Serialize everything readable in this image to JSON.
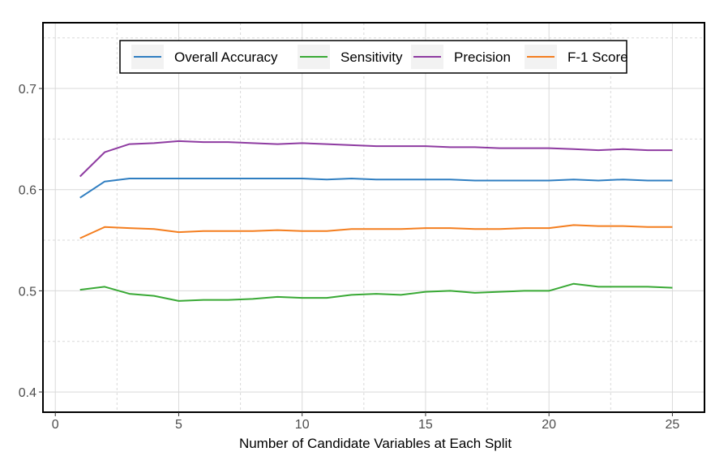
{
  "chart_data": {
    "type": "line",
    "title": "",
    "xlabel": "Number of Candidate Variables at Each Split",
    "ylabel": "",
    "xlim": [
      -0.5,
      26.3
    ],
    "ylim": [
      0.38,
      0.765
    ],
    "x_ticks": [
      0,
      5,
      10,
      15,
      20,
      25
    ],
    "y_ticks": [
      0.4,
      0.5,
      0.6,
      0.7
    ],
    "x_tick_labels": [
      "0",
      "5",
      "10",
      "15",
      "20",
      "25"
    ],
    "y_tick_labels": [
      "0.4",
      "0.5",
      "0.6",
      "0.7"
    ],
    "grid": true,
    "legend_position": "top",
    "x": [
      1,
      2,
      3,
      4,
      5,
      6,
      7,
      8,
      9,
      10,
      11,
      12,
      13,
      14,
      15,
      16,
      17,
      18,
      19,
      20,
      21,
      22,
      23,
      24,
      25
    ],
    "series": [
      {
        "name": "Overall Accuracy",
        "color": "#2f7ec1",
        "values": [
          0.592,
          0.608,
          0.611,
          0.611,
          0.611,
          0.611,
          0.611,
          0.611,
          0.611,
          0.611,
          0.61,
          0.611,
          0.61,
          0.61,
          0.61,
          0.61,
          0.609,
          0.609,
          0.609,
          0.609,
          0.61,
          0.609,
          0.61,
          0.609,
          0.609
        ]
      },
      {
        "name": "Sensitivity",
        "color": "#39a935",
        "values": [
          0.501,
          0.504,
          0.497,
          0.495,
          0.49,
          0.491,
          0.491,
          0.492,
          0.494,
          0.493,
          0.493,
          0.496,
          0.497,
          0.496,
          0.499,
          0.5,
          0.498,
          0.499,
          0.5,
          0.5,
          0.507,
          0.504,
          0.504,
          0.504,
          0.503
        ]
      },
      {
        "name": "Precision",
        "color": "#8e3ba1",
        "values": [
          0.613,
          0.637,
          0.645,
          0.646,
          0.648,
          0.647,
          0.647,
          0.646,
          0.645,
          0.646,
          0.645,
          0.644,
          0.643,
          0.643,
          0.643,
          0.642,
          0.642,
          0.641,
          0.641,
          0.641,
          0.64,
          0.639,
          0.64,
          0.639,
          0.639
        ]
      },
      {
        "name": "F-1 Score",
        "color": "#f47e1f",
        "values": [
          0.552,
          0.563,
          0.562,
          0.561,
          0.558,
          0.559,
          0.559,
          0.559,
          0.56,
          0.559,
          0.559,
          0.561,
          0.561,
          0.561,
          0.562,
          0.562,
          0.561,
          0.561,
          0.562,
          0.562,
          0.565,
          0.564,
          0.564,
          0.563,
          0.563
        ]
      }
    ]
  }
}
